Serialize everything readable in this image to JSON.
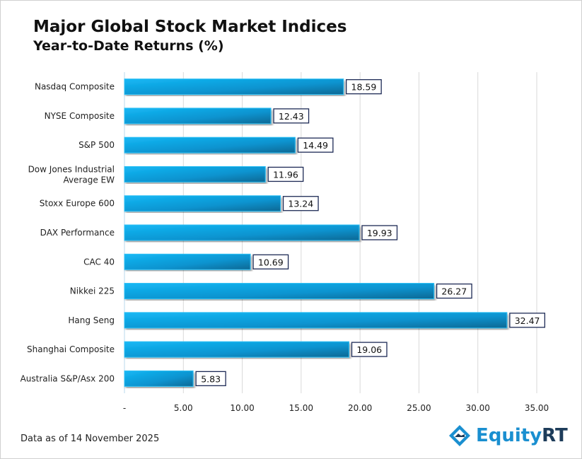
{
  "chart_data": {
    "type": "bar",
    "orientation": "horizontal",
    "title": "Major Global Stock Market Indices",
    "subtitle": "Year-to-Date Returns (%)",
    "categories": [
      "Nasdaq Composite",
      "NYSE Composite",
      "S&P 500",
      "Dow Jones Industrial Average EW",
      "Stoxx Europe 600",
      "DAX Performance",
      "CAC 40",
      "Nikkei 225",
      "Hang Seng",
      "Shanghai Composite",
      "Australia S&P/Asx 200"
    ],
    "values": [
      18.59,
      12.43,
      14.49,
      11.96,
      13.24,
      19.93,
      10.69,
      26.27,
      32.47,
      19.06,
      5.83
    ],
    "data_labels": [
      "18.59",
      "12.43",
      "14.49",
      "11.96",
      "13.24",
      "19.93",
      "10.69",
      "26.27",
      "32.47",
      "19.06",
      "5.83"
    ],
    "xlim": [
      0,
      35
    ],
    "xticks": [
      0,
      5,
      10,
      15,
      20,
      25,
      30,
      35
    ],
    "xtick_labels": [
      "-",
      "5.00",
      "10.00",
      "15.00",
      "20.00",
      "25.00",
      "30.00",
      "35.00"
    ],
    "grid": true,
    "bar_color": "#10a8e8",
    "bar_color_dark": "#0a6f9e"
  },
  "footer": "Data as of 14 November 2025",
  "logo": {
    "text": "Equity",
    "text2": "RT"
  }
}
